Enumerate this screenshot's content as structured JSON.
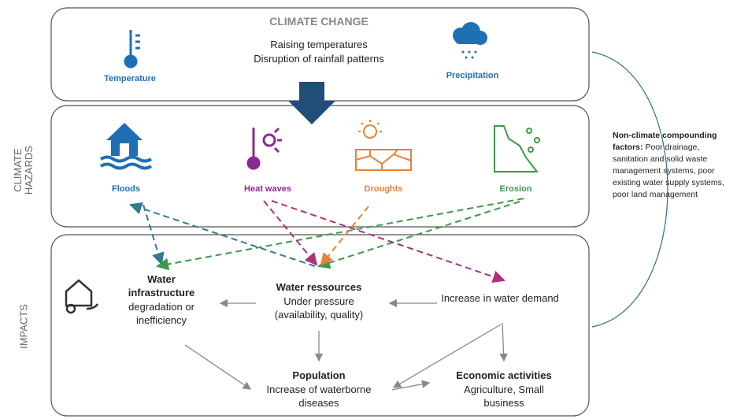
{
  "climate_change": {
    "title": "CLIMATE CHANGE",
    "lines": [
      "Raising temperatures",
      "Disruption of rainfall patterns"
    ],
    "icons": [
      "Temperature",
      "Precipitation"
    ]
  },
  "hazards": {
    "label": "CLIMATE HAZARDS",
    "items": [
      "Floods",
      "Heat waves",
      "Droughts",
      "Erosion"
    ]
  },
  "impacts": {
    "label": "IMPACTS",
    "nodes": [
      {
        "title": "Water infrastructure",
        "text": "degradation or inefficiency"
      },
      {
        "title": "Water ressources",
        "text": "Under pressure (availability, quality)"
      },
      {
        "title": "",
        "text": "Increase in water demand"
      },
      {
        "title": "Population",
        "text": "Increase of waterborne diseases"
      },
      {
        "title": "Economic activities",
        "text": "Agriculture, Small business"
      }
    ]
  },
  "side_note": {
    "title": "Non-climate compounding factors:",
    "text": "Poor drainage, sanitation and solid waste management systems, poor existing water supply systems, poor land management"
  }
}
